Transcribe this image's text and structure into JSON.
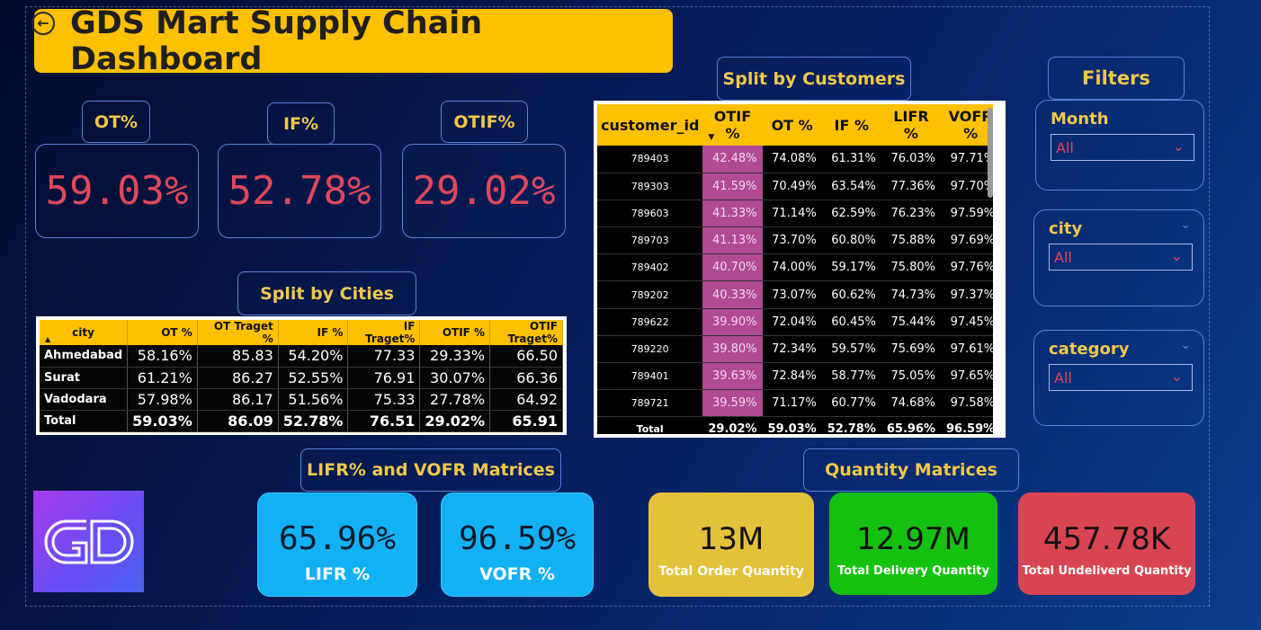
{
  "header": {
    "title": "GDS Mart Supply Chain Dashboard"
  },
  "kpis": [
    {
      "label": "OT%",
      "value": "59.03%"
    },
    {
      "label": "IF%",
      "value": "52.78%"
    },
    {
      "label": "OTIF%",
      "value": "29.02%"
    }
  ],
  "cities_section": {
    "title": "Split by Cities",
    "columns": [
      "city",
      "OT %",
      "OT Traget %",
      "IF %",
      "IF Traget%",
      "OTIF %",
      "OTIF Traget%"
    ],
    "rows": [
      [
        "Ahmedabad",
        "58.16%",
        "85.83",
        "54.20%",
        "77.33",
        "29.33%",
        "66.50"
      ],
      [
        "Surat",
        "61.21%",
        "86.27",
        "52.55%",
        "76.91",
        "30.07%",
        "66.36"
      ],
      [
        "Vadodara",
        "57.98%",
        "86.17",
        "51.56%",
        "75.33",
        "27.78%",
        "64.92"
      ]
    ],
    "total": [
      "Total",
      "59.03%",
      "86.09",
      "52.78%",
      "76.51",
      "29.02%",
      "65.91"
    ]
  },
  "customers_section": {
    "title": "Split by Customers",
    "columns": [
      "customer_id",
      "OTIF %",
      "OT %",
      "IF %",
      "LIFR %",
      "VOFR %"
    ],
    "rows": [
      [
        "789403",
        "42.48%",
        "74.08%",
        "61.31%",
        "76.03%",
        "97.71%"
      ],
      [
        "789303",
        "41.59%",
        "70.49%",
        "63.54%",
        "77.36%",
        "97.70%"
      ],
      [
        "789603",
        "41.33%",
        "71.14%",
        "62.59%",
        "76.23%",
        "97.59%"
      ],
      [
        "789703",
        "41.13%",
        "73.70%",
        "60.80%",
        "75.88%",
        "97.69%"
      ],
      [
        "789402",
        "40.70%",
        "74.00%",
        "59.17%",
        "75.80%",
        "97.76%"
      ],
      [
        "789202",
        "40.33%",
        "73.07%",
        "60.62%",
        "74.73%",
        "97.37%"
      ],
      [
        "789622",
        "39.90%",
        "72.04%",
        "60.45%",
        "75.44%",
        "97.45%"
      ],
      [
        "789220",
        "39.80%",
        "72.34%",
        "59.57%",
        "75.69%",
        "97.61%"
      ],
      [
        "789401",
        "39.63%",
        "72.84%",
        "58.77%",
        "75.05%",
        "97.65%"
      ],
      [
        "789721",
        "39.59%",
        "71.17%",
        "60.77%",
        "74.68%",
        "97.58%"
      ]
    ],
    "total": [
      "Total",
      "29.02%",
      "59.03%",
      "52.78%",
      "65.96%",
      "96.59%"
    ]
  },
  "filters": {
    "title": "Filters",
    "month": {
      "label": "Month",
      "value": "All"
    },
    "city": {
      "label": "city",
      "value": "All"
    },
    "category": {
      "label": "category",
      "value": "All"
    }
  },
  "lifr_vofr": {
    "title": "LIFR% and VOFR Matrices",
    "lifr": {
      "value": "65.96%",
      "label": "LIFR %"
    },
    "vofr": {
      "value": "96.59%",
      "label": "VOFR %"
    }
  },
  "quantity": {
    "title": "Quantity Matrices",
    "order": {
      "value": "13M",
      "label": "Total Order Quantity",
      "color": "#e3c13a"
    },
    "delivery": {
      "value": "12.97M",
      "label": "Total Delivery Quantity",
      "color": "#14c10f"
    },
    "undelivered": {
      "value": "457.78K",
      "label": "Total Undeliverd Quantity",
      "color": "#d94452"
    }
  },
  "colors": {
    "accent": "#ffc000",
    "kpi_text": "#e0485a",
    "otif_cell": "#b04a93"
  }
}
